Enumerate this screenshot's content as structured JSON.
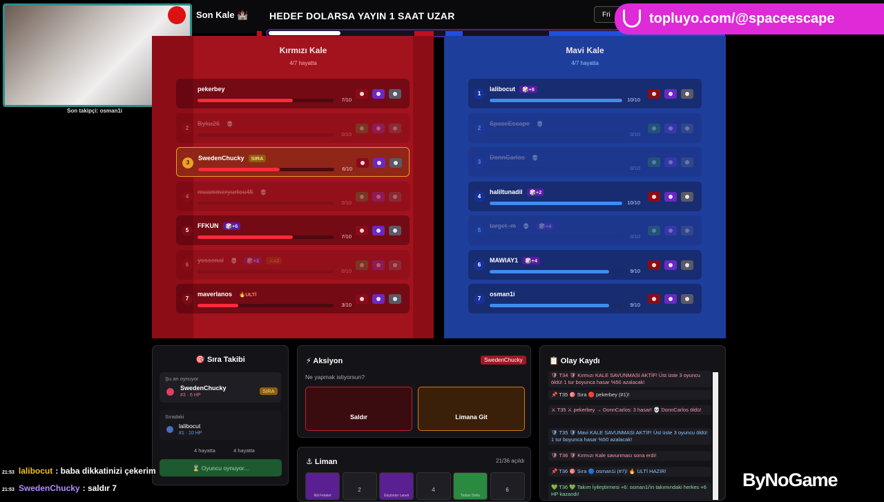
{
  "header": {
    "streamer": "Son Kale 🏰",
    "title": "HEDEF DOLARSA YAYIN 1 SAAT UZAR",
    "button": "Fri",
    "banner": "topluyo.com/@spaceescape"
  },
  "webcam": {
    "caption": "Son takipçi: osman1i"
  },
  "teams": [
    {
      "name": "Kırmızı Kale",
      "alive": "4/7 hayatta",
      "players": [
        {
          "num": null,
          "name": "pekerbey",
          "tags": [],
          "hp": 7,
          "max": 10,
          "hp_label": "7/10",
          "dead": false,
          "active": false
        },
        {
          "num": "2",
          "name": "Byku26",
          "tags": [
            "💀"
          ],
          "hp": 0,
          "max": 10,
          "hp_label": "0/10",
          "dead": true,
          "active": false
        },
        {
          "num": "3",
          "name": "SwedenChucky",
          "tags": [
            "SIRA"
          ],
          "hp": 6,
          "max": 10,
          "hp_label": "6/10",
          "dead": false,
          "active": true
        },
        {
          "num": "4",
          "name": "muammeryurtcu45",
          "tags": [
            "💀"
          ],
          "hp": 0,
          "max": 10,
          "hp_label": "0/10",
          "dead": true,
          "active": false
        },
        {
          "num": "5",
          "name": "FFKUN",
          "tags": [
            "🎲+6"
          ],
          "hp": 7,
          "max": 10,
          "hp_label": "7/10",
          "dead": false,
          "active": false
        },
        {
          "num": "6",
          "name": "yessenal",
          "tags": [
            "💀",
            "🎲+2",
            "⚔x2"
          ],
          "hp": 0,
          "max": 10,
          "hp_label": "0/10",
          "dead": true,
          "active": false
        },
        {
          "num": "7",
          "name": "maverlanos",
          "tags": [
            "🔥ULTİ"
          ],
          "hp": 3,
          "max": 10,
          "hp_label": "3/10",
          "dead": false,
          "active": false
        }
      ]
    },
    {
      "name": "Mavi Kale",
      "alive": "4/7 hayatta",
      "players": [
        {
          "num": "1",
          "name": "lalibocut",
          "tags": [
            "🎲+8"
          ],
          "hp": 10,
          "max": 10,
          "hp_label": "10/10",
          "dead": false,
          "active": false
        },
        {
          "num": "2",
          "name": "SpaceEscape",
          "tags": [
            "💀"
          ],
          "hp": 0,
          "max": 10,
          "hp_label": "0/10",
          "dead": true,
          "active": false
        },
        {
          "num": "3",
          "name": "DonnCarlos",
          "tags": [
            "💀"
          ],
          "hp": 0,
          "max": 10,
          "hp_label": "0/10",
          "dead": true,
          "active": false
        },
        {
          "num": "4",
          "name": "haliltunadil",
          "tags": [
            "🎲+2"
          ],
          "hp": 10,
          "max": 10,
          "hp_label": "10/10",
          "dead": false,
          "active": false
        },
        {
          "num": "5",
          "name": "target_m",
          "tags": [
            "💀",
            "🎲+4"
          ],
          "hp": 0,
          "max": 10,
          "hp_label": "0/10",
          "dead": true,
          "active": false
        },
        {
          "num": "6",
          "name": "MAWIAY1",
          "tags": [
            "🎲+4"
          ],
          "hp": 9,
          "max": 10,
          "hp_label": "9/10",
          "dead": false,
          "active": false
        },
        {
          "num": "7",
          "name": "osman1i",
          "tags": [],
          "hp": 9,
          "max": 10,
          "hp_label": "9/10",
          "dead": false,
          "active": false
        }
      ]
    }
  ],
  "queue": {
    "title": "🎯 Sıra Takibi",
    "now_label": "Şu an oynuyor",
    "now_name": "SwedenChucky",
    "now_info": "#3 · 6 HP",
    "now_tag": "SIRA",
    "next_label": "Sıradaki",
    "next_name": "lalibocut",
    "next_info": "#1 · 10 HP",
    "red_alive": "4 hayatta",
    "blue_alive": "4 hayatta",
    "status": "⏳ Oyuncu oynuyor..."
  },
  "action": {
    "title": "⚡ Aksiyon",
    "player": "SwedenChucky",
    "prompt": "Ne yapmak istiyorsun?",
    "attack": "Saldır",
    "harbor": "Limana Git"
  },
  "harbor": {
    "title": "⚓ Liman",
    "opened": "21/36 açıldı",
    "cells": [
      "İkili Felaket",
      "2",
      "Güçlünün Laneti",
      "4",
      "Tedavi Dirilis",
      "6"
    ]
  },
  "log": {
    "title": "📋 Olay Kaydı",
    "entries": [
      "🛡 T34 🛡 Kırmızı KALE SAVUNMASI AKTİF! Üst üste 3 oyuncu öldü! 1 tur boyunca hasar %50 azalacak!",
      "📌 T35 🎯 Sıra 🔴 pekerbey (#1)!",
      "⚔ T35 ⚔ pekerbey → DonnCarlos: 3 hasar! 💀 DonnCarlos öldü!",
      "🛡 T35 🛡 Mavi KALE SAVUNMASI AKTİF! Üst üste 3 oyuncu öldü! 1 tur boyunca hasar %50 azalacak!",
      "🛡 T36 🛡 Kırmızı Kale savunması sona erdi!",
      "📌 T36 🎯 Sıra 🔵 osman1i (#7)! 🔥 ULTİ HAZIR!",
      "💚 T36 💚 Takım İyileştirmesi +6: osman1i'in takımındaki herkes +6 HP kazandı!"
    ]
  },
  "chat": [
    {
      "time": "21:53",
      "user": "lalibocut",
      "text": ": baba dikkatinizi çekerim"
    },
    {
      "time": "21:53",
      "user": "SwedenChucky",
      "text": ": saldır 7"
    }
  ],
  "logo": "ByNoGame"
}
